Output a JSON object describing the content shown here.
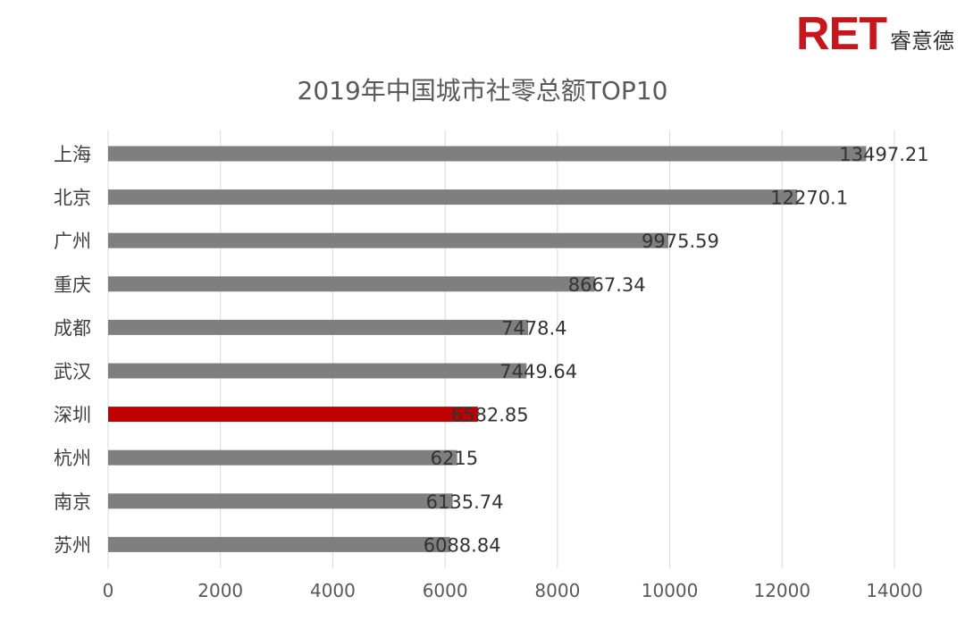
{
  "logo": {
    "mark": "RET",
    "text": "睿意德",
    "color": "#c8161d"
  },
  "chart_data": {
    "type": "bar",
    "orientation": "horizontal",
    "title": "2019年中国城市社零总额TOP10",
    "categories": [
      "上海",
      "北京",
      "广州",
      "重庆",
      "成都",
      "武汉",
      "深圳",
      "杭州",
      "南京",
      "苏州"
    ],
    "values": [
      13497.21,
      12270.1,
      9975.59,
      8667.34,
      7478.4,
      7449.64,
      6582.85,
      6215,
      6135.74,
      6088.84
    ],
    "value_labels": [
      "13497.21",
      "12270.1",
      "9975.59",
      "8667.34",
      "7478.4",
      "7449.64",
      "6582.85",
      "6215",
      "6135.74",
      "6088.84"
    ],
    "highlight": "深圳",
    "bar_color": "#7f7f7f",
    "highlight_color": "#c00000",
    "xlim": [
      0,
      14000
    ],
    "xticks": [
      0,
      2000,
      4000,
      6000,
      8000,
      10000,
      12000,
      14000
    ],
    "xtick_labels": [
      "0",
      "2000",
      "4000",
      "6000",
      "8000",
      "10000",
      "12000",
      "14000"
    ],
    "xlabel": "",
    "ylabel": "",
    "grid": true,
    "legend": "none"
  }
}
